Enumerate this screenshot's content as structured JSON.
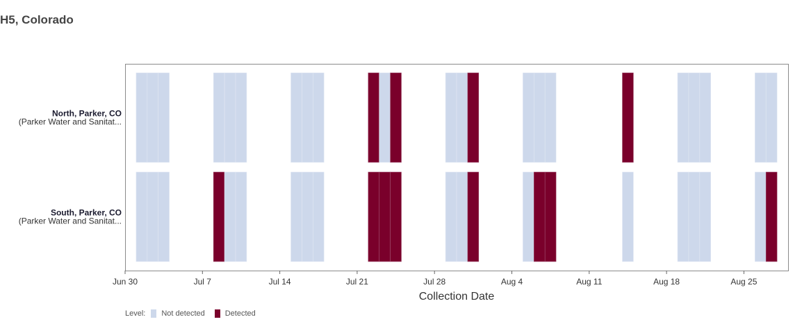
{
  "title": "H5, Colorado",
  "chart_data": {
    "type": "heatmap",
    "title": "H5, Colorado",
    "xlabel": "Collection Date",
    "ylabel": "",
    "x_range": [
      "2024-06-30",
      "2024-08-29"
    ],
    "x_ticks": [
      "Jun 30",
      "Jul 7",
      "Jul 14",
      "Jul 21",
      "Jul 28",
      "Aug 4",
      "Aug 11",
      "Aug 18",
      "Aug 25"
    ],
    "x_tick_dates": [
      "2024-06-30",
      "2024-07-07",
      "2024-07-14",
      "2024-07-21",
      "2024-07-28",
      "2024-08-04",
      "2024-08-11",
      "2024-08-18",
      "2024-08-25"
    ],
    "legend": {
      "title": "Level:",
      "items": [
        {
          "label": "Not detected",
          "color": "#cdd8eb"
        },
        {
          "label": "Detected",
          "color": "#7a002b"
        }
      ]
    },
    "rows": [
      {
        "name": "North, Parker, CO",
        "sub": "(Parker Water and Sanitat...",
        "samples": [
          {
            "date": "2024-07-01",
            "level": "Not detected"
          },
          {
            "date": "2024-07-02",
            "level": "Not detected"
          },
          {
            "date": "2024-07-03",
            "level": "Not detected"
          },
          {
            "date": "2024-07-08",
            "level": "Not detected"
          },
          {
            "date": "2024-07-09",
            "level": "Not detected"
          },
          {
            "date": "2024-07-10",
            "level": "Not detected"
          },
          {
            "date": "2024-07-15",
            "level": "Not detected"
          },
          {
            "date": "2024-07-16",
            "level": "Not detected"
          },
          {
            "date": "2024-07-17",
            "level": "Not detected"
          },
          {
            "date": "2024-07-22",
            "level": "Detected"
          },
          {
            "date": "2024-07-23",
            "level": "Not detected"
          },
          {
            "date": "2024-07-24",
            "level": "Detected"
          },
          {
            "date": "2024-07-29",
            "level": "Not detected"
          },
          {
            "date": "2024-07-30",
            "level": "Not detected"
          },
          {
            "date": "2024-07-31",
            "level": "Detected"
          },
          {
            "date": "2024-08-05",
            "level": "Not detected"
          },
          {
            "date": "2024-08-06",
            "level": "Not detected"
          },
          {
            "date": "2024-08-07",
            "level": "Not detected"
          },
          {
            "date": "2024-08-14",
            "level": "Detected"
          },
          {
            "date": "2024-08-19",
            "level": "Not detected"
          },
          {
            "date": "2024-08-20",
            "level": "Not detected"
          },
          {
            "date": "2024-08-21",
            "level": "Not detected"
          },
          {
            "date": "2024-08-26",
            "level": "Not detected"
          },
          {
            "date": "2024-08-27",
            "level": "Not detected"
          }
        ]
      },
      {
        "name": "South, Parker, CO",
        "sub": "(Parker Water and Sanitat...",
        "samples": [
          {
            "date": "2024-07-01",
            "level": "Not detected"
          },
          {
            "date": "2024-07-02",
            "level": "Not detected"
          },
          {
            "date": "2024-07-03",
            "level": "Not detected"
          },
          {
            "date": "2024-07-08",
            "level": "Detected"
          },
          {
            "date": "2024-07-09",
            "level": "Not detected"
          },
          {
            "date": "2024-07-10",
            "level": "Not detected"
          },
          {
            "date": "2024-07-15",
            "level": "Not detected"
          },
          {
            "date": "2024-07-16",
            "level": "Not detected"
          },
          {
            "date": "2024-07-17",
            "level": "Not detected"
          },
          {
            "date": "2024-07-22",
            "level": "Detected"
          },
          {
            "date": "2024-07-23",
            "level": "Detected"
          },
          {
            "date": "2024-07-24",
            "level": "Detected"
          },
          {
            "date": "2024-07-29",
            "level": "Not detected"
          },
          {
            "date": "2024-07-30",
            "level": "Not detected"
          },
          {
            "date": "2024-07-31",
            "level": "Detected"
          },
          {
            "date": "2024-08-05",
            "level": "Not detected"
          },
          {
            "date": "2024-08-06",
            "level": "Detected"
          },
          {
            "date": "2024-08-07",
            "level": "Detected"
          },
          {
            "date": "2024-08-14",
            "level": "Not detected"
          },
          {
            "date": "2024-08-19",
            "level": "Not detected"
          },
          {
            "date": "2024-08-20",
            "level": "Not detected"
          },
          {
            "date": "2024-08-21",
            "level": "Not detected"
          },
          {
            "date": "2024-08-26",
            "level": "Not detected"
          },
          {
            "date": "2024-08-27",
            "level": "Detected"
          }
        ]
      }
    ]
  }
}
